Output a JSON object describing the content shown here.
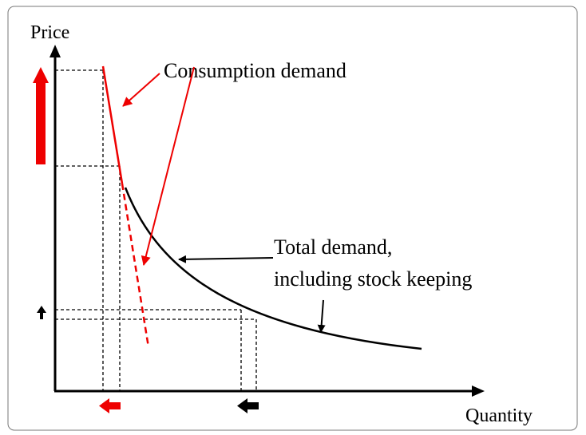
{
  "axes": {
    "y_label": "Price",
    "x_label": "Quantity"
  },
  "annotations": {
    "consumption": "Consumption demand",
    "total_line1": "Total demand,",
    "total_line2": "including stock keeping"
  }
}
